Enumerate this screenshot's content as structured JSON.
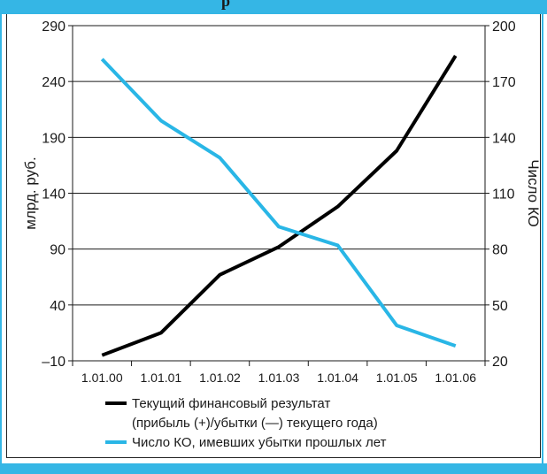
{
  "header": {
    "title_fragment": "р"
  },
  "chart_data": {
    "type": "line",
    "categories": [
      "1.01.00",
      "1.01.01",
      "1.01.02",
      "1.01.03",
      "1.01.04",
      "1.01.05",
      "1.01.06"
    ],
    "ylabel_left": "млрд. руб.",
    "ylabel_right": "Число КО",
    "ylim_left": [
      -10,
      290
    ],
    "ylim_right": [
      20,
      200
    ],
    "yticks_left": [
      "–10",
      "40",
      "90",
      "140",
      "190",
      "240",
      "290"
    ],
    "yticks_right": [
      "20",
      "50",
      "80",
      "110",
      "140",
      "170",
      "200"
    ],
    "grid": "horizontal",
    "legend_position": "bottom",
    "series": [
      {
        "name": "Текущий финансовый результат (прибыль (+)/убытки (—) текущего года)",
        "legend_lines": [
          "Текущий финансовый результат",
          "(прибыль (+)/убытки (—) текущего года)"
        ],
        "axis": "left",
        "color": "#000000",
        "values": [
          -5,
          15,
          67,
          92,
          128,
          178,
          263
        ]
      },
      {
        "name": "Число КО, имевших убытки прошлых лет",
        "legend_lines": [
          "Число КО, имевших убытки прошлых лет"
        ],
        "axis": "right",
        "color": "#29b6e6",
        "values": [
          182,
          149,
          129,
          92,
          82,
          39,
          28
        ]
      }
    ]
  }
}
